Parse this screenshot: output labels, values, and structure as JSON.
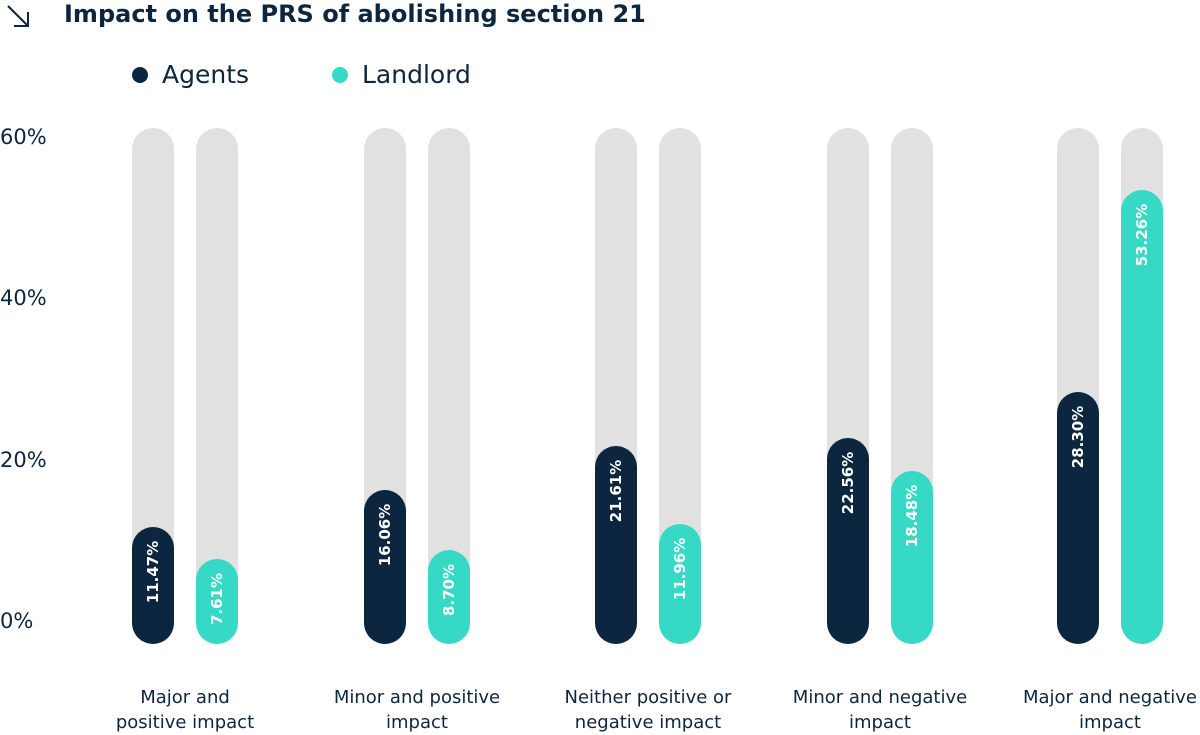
{
  "chart_data": {
    "type": "bar",
    "title": "Impact on the PRS of abolishing section 21",
    "categories": [
      "Major and\npositive impact",
      "Minor and positive\nimpact",
      "Neither positive or\nnegative impact",
      "Minor and negative\nimpact",
      "Major and negative\nimpact"
    ],
    "series": [
      {
        "name": "Agents",
        "color": "#0c2640",
        "values": [
          11.47,
          16.06,
          21.61,
          22.56,
          28.3
        ]
      },
      {
        "name": "Landlord",
        "color": "#36d9c5",
        "values": [
          7.61,
          8.7,
          11.96,
          18.48,
          53.26
        ]
      }
    ],
    "value_labels": [
      [
        "11.47%",
        "16.06%",
        "21.61%",
        "22.56%",
        "28.30%"
      ],
      [
        "7.61%",
        "8.70%",
        "11.96%",
        "18.48%",
        "53.26%"
      ]
    ],
    "yticks": [
      "0%",
      "20%",
      "40%",
      "60%"
    ],
    "ytick_values": [
      0,
      20,
      40,
      60
    ],
    "ylim": [
      0,
      60
    ],
    "legend_position": "top-left",
    "grid": false,
    "track_color": "#e1e1e1"
  },
  "icons": {
    "title_icon": "arrow-down-right-icon"
  }
}
